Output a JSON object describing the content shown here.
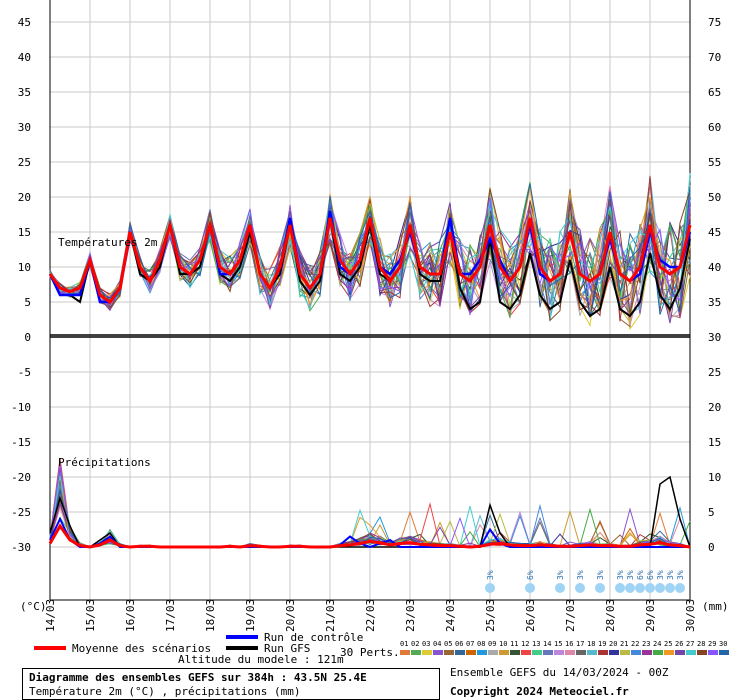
{
  "chart_data": {
    "type": "line",
    "title": "Diagramme des ensembles GEFS sur 384h : 43.5N 25.4E",
    "subtitle": "Température 2m (°C) , précipitations (mm)",
    "panel_labels": {
      "temperature": "Températures 2m",
      "precipitation": "Précipitations"
    },
    "y_left_unit": "(°C)",
    "y_right_unit": "(mm)",
    "y_left_ticks": [
      45,
      40,
      35,
      30,
      25,
      20,
      15,
      10,
      5,
      0,
      -5,
      -10,
      -15,
      -20,
      -25,
      -30
    ],
    "y_right_ticks": [
      75,
      70,
      65,
      60,
      55,
      50,
      45,
      40,
      35,
      30,
      25,
      20,
      15,
      10,
      5,
      0
    ],
    "y_right_note": "right axis: temperature panel 30..75 corresponds to 0..45 °C; precipitation panel 0..15 mm maps to -30..-15 on left axis",
    "x_ticks": [
      "14/03",
      "15/03",
      "16/03",
      "17/03",
      "18/03",
      "19/03",
      "20/03",
      "21/03",
      "22/03",
      "23/03",
      "24/03",
      "25/03",
      "26/03",
      "27/03",
      "28/03",
      "29/03",
      "30/03"
    ],
    "x_range_hours": [
      0,
      384
    ],
    "snow_marks": [
      {
        "hour": 264,
        "pct": "3%"
      },
      {
        "hour": 288,
        "pct": "6%"
      },
      {
        "hour": 306,
        "pct": "3%"
      },
      {
        "hour": 318,
        "pct": "3%"
      },
      {
        "hour": 330,
        "pct": "3%"
      },
      {
        "hour": 342,
        "pct": "3%"
      },
      {
        "hour": 348,
        "pct": "3%"
      },
      {
        "hour": 354,
        "pct": "6%"
      },
      {
        "hour": 360,
        "pct": "6%"
      },
      {
        "hour": 366,
        "pct": "3%"
      },
      {
        "hour": 372,
        "pct": "3%"
      },
      {
        "hour": 378,
        "pct": "3%"
      }
    ],
    "series": [
      {
        "name": "Moyenne des scénarios",
        "color": "#ff0000",
        "temp_mean": [
          9,
          7,
          6.5,
          7,
          11,
          6,
          5,
          7,
          15,
          10,
          8,
          11,
          16,
          10,
          9,
          11,
          16,
          10,
          9,
          11,
          16,
          9,
          7,
          10,
          16,
          9,
          7,
          9,
          17,
          11,
          9,
          11,
          17,
          10,
          8,
          10,
          16,
          10,
          9,
          9,
          15,
          9,
          8,
          10,
          16,
          10,
          8,
          10,
          17,
          10,
          8,
          9,
          15,
          9,
          8,
          9,
          15,
          9,
          8,
          10,
          16,
          10,
          9,
          10,
          16
        ],
        "precip_mean": [
          0.5,
          3,
          1,
          0.2,
          0,
          0.3,
          1,
          0.2,
          0,
          0.1,
          0.1,
          0,
          0,
          0,
          0,
          0,
          0,
          0,
          0.1,
          0,
          0.2,
          0.1,
          0,
          0,
          0.1,
          0.1,
          0,
          0,
          0,
          0.2,
          0.3,
          0.5,
          0.8,
          0.6,
          0.3,
          0.5,
          0.6,
          0.4,
          0.3,
          0.2,
          0.2,
          0.1,
          0,
          0.1,
          0.4,
          0.5,
          0.3,
          0.2,
          0.2,
          0.3,
          0.2,
          0.1,
          0.1,
          0.2,
          0.3,
          0.2,
          0.2,
          0.1,
          0.1,
          0.3,
          0.4,
          0.6,
          0.3,
          0.2,
          0
        ]
      },
      {
        "name": "Run de contrôle",
        "color": "#0000ff",
        "temp": [
          9,
          6,
          6,
          6,
          11,
          5,
          5,
          7,
          15,
          10,
          8,
          11,
          16,
          10,
          9,
          11,
          16,
          9,
          9,
          11,
          16,
          9,
          7,
          10,
          17,
          9,
          7,
          9,
          18,
          10,
          9,
          11,
          17,
          10,
          9,
          11,
          15,
          10,
          9,
          9,
          17,
          9,
          9,
          11,
          14,
          11,
          8,
          10,
          16,
          9,
          8,
          9,
          15,
          9,
          8,
          9,
          14,
          9,
          8,
          9,
          15,
          11,
          10,
          10,
          15
        ],
        "precip": [
          1,
          4,
          1,
          0,
          0,
          0.5,
          1.5,
          0,
          0,
          0,
          0,
          0,
          0,
          0,
          0,
          0,
          0,
          0,
          0,
          0,
          0,
          0,
          0,
          0,
          0,
          0,
          0,
          0,
          0,
          0.3,
          1.5,
          0.5,
          0,
          0.5,
          1,
          0,
          0,
          0,
          0,
          0,
          0,
          0,
          0,
          0,
          2.5,
          0.5,
          0,
          0,
          0,
          0,
          0,
          0,
          0,
          0,
          0,
          0,
          0,
          0,
          0,
          0,
          0,
          0,
          0,
          0,
          0
        ]
      },
      {
        "name": "Run GFS",
        "color": "#000000",
        "temp": [
          9,
          6,
          6,
          5,
          11,
          5,
          5,
          7,
          15,
          9,
          8,
          10,
          16,
          9,
          9,
          10,
          16,
          9,
          8,
          10,
          15,
          9,
          7,
          9,
          16,
          8,
          6,
          8,
          17,
          9,
          8,
          10,
          16,
          9,
          8,
          10,
          16,
          9,
          8,
          8,
          15,
          7,
          4,
          5,
          14,
          5,
          4,
          6,
          12,
          6,
          4,
          5,
          11,
          5,
          3,
          4,
          10,
          4,
          3,
          5,
          12,
          6,
          4,
          7,
          14
        ],
        "precip": [
          2,
          7,
          3,
          0,
          0,
          1,
          2,
          0,
          0,
          0,
          0,
          0,
          0,
          0,
          0,
          0,
          0,
          0,
          0,
          0,
          0,
          0,
          0,
          0,
          0,
          0,
          0,
          0,
          0,
          0,
          0,
          0,
          0,
          0,
          0,
          0,
          0,
          0,
          0,
          0,
          0,
          0,
          0,
          0,
          6,
          2,
          0,
          0,
          0,
          0,
          0,
          0,
          0,
          0,
          0,
          0,
          0,
          0,
          0,
          0,
          0,
          9,
          10,
          4,
          0
        ]
      }
    ],
    "perturbation_colors": [
      "#e07a38",
      "#55aa55",
      "#ddcc33",
      "#8855cc",
      "#996633",
      "#336699",
      "#cc6600",
      "#2299dd",
      "#aaaaaa",
      "#cc9933",
      "#335533",
      "#ee4444",
      "#44cc88",
      "#6677bb",
      "#bb88dd",
      "#dd88aa",
      "#666666",
      "#55bbcc",
      "#aa3333",
      "#333399",
      "#bbbb44",
      "#4488dd",
      "#993399",
      "#44aa44",
      "#ee9922",
      "#7744aa",
      "#44cccc",
      "#884422",
      "#8855ff",
      "#2266aa"
    ],
    "perturbation_labels": [
      "01",
      "02",
      "03",
      "04",
      "05",
      "06",
      "07",
      "08",
      "09",
      "10",
      "11",
      "12",
      "13",
      "14",
      "15",
      "16",
      "17",
      "18",
      "19",
      "20",
      "21",
      "22",
      "23",
      "24",
      "25",
      "26",
      "27",
      "28",
      "29",
      "30"
    ]
  },
  "legend": {
    "mean_label": "Moyenne des scénarios",
    "control_label": "Run de contrôle",
    "gfs_label": "Run GFS",
    "altitude": "Altitude du modele : 121m",
    "perts_label": "30 Perts.",
    "mean_color": "#ff0000",
    "control_color": "#0000ff",
    "gfs_color": "#000000"
  },
  "footer": {
    "title": "Diagramme des ensembles GEFS sur 384h : 43.5N 25.4E",
    "subtitle": "Température 2m (°C) , précipitations (mm)",
    "run_info": "Ensemble GEFS du 14/03/2024 - 00Z",
    "copyright": "Copyright 2024 Meteociel.fr"
  }
}
